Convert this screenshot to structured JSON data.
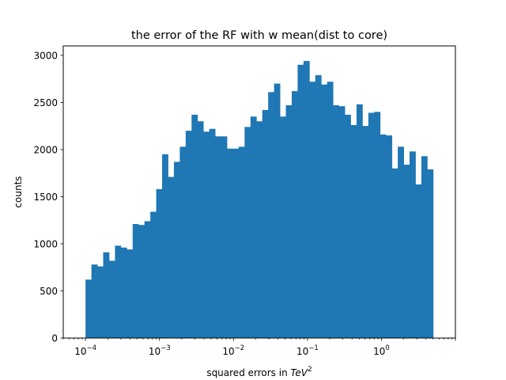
{
  "chart_data": {
    "type": "bar",
    "title": "the error of the RF with w mean(dist to core)",
    "xlabel_prefix": "squared errors in ",
    "xlabel_unit_base": "TeV",
    "xlabel_unit_exp": "2",
    "ylabel": "counts",
    "x_scale": "log",
    "xlim": [
      5e-05,
      10
    ],
    "ylim": [
      0,
      3100
    ],
    "bin_start": 0.0001,
    "bin_end": 5,
    "y_ticks": [
      0,
      500,
      1000,
      1500,
      2000,
      2500,
      3000
    ],
    "x_ticks": [
      {
        "base": "10",
        "exp": "−4",
        "value": 0.0001
      },
      {
        "base": "10",
        "exp": "−3",
        "value": 0.001
      },
      {
        "base": "10",
        "exp": "−2",
        "value": 0.01
      },
      {
        "base": "10",
        "exp": "−1",
        "value": 0.1
      },
      {
        "base": "10",
        "exp": "0",
        "value": 1
      }
    ],
    "values": [
      620,
      780,
      760,
      910,
      820,
      980,
      960,
      940,
      1210,
      1200,
      1240,
      1340,
      1580,
      1950,
      1710,
      1870,
      2030,
      2200,
      2370,
      2300,
      2190,
      2220,
      2140,
      2140,
      2010,
      2010,
      2030,
      2240,
      2350,
      2300,
      2420,
      2610,
      2700,
      2350,
      2470,
      2620,
      2900,
      2940,
      2720,
      2790,
      2690,
      2720,
      2470,
      2460,
      2370,
      2260,
      2480,
      2250,
      2390,
      2400,
      2160,
      2150,
      1800,
      2030,
      1840,
      1980,
      1630,
      1930,
      1790
    ],
    "bar_color": "#1f77b4"
  }
}
